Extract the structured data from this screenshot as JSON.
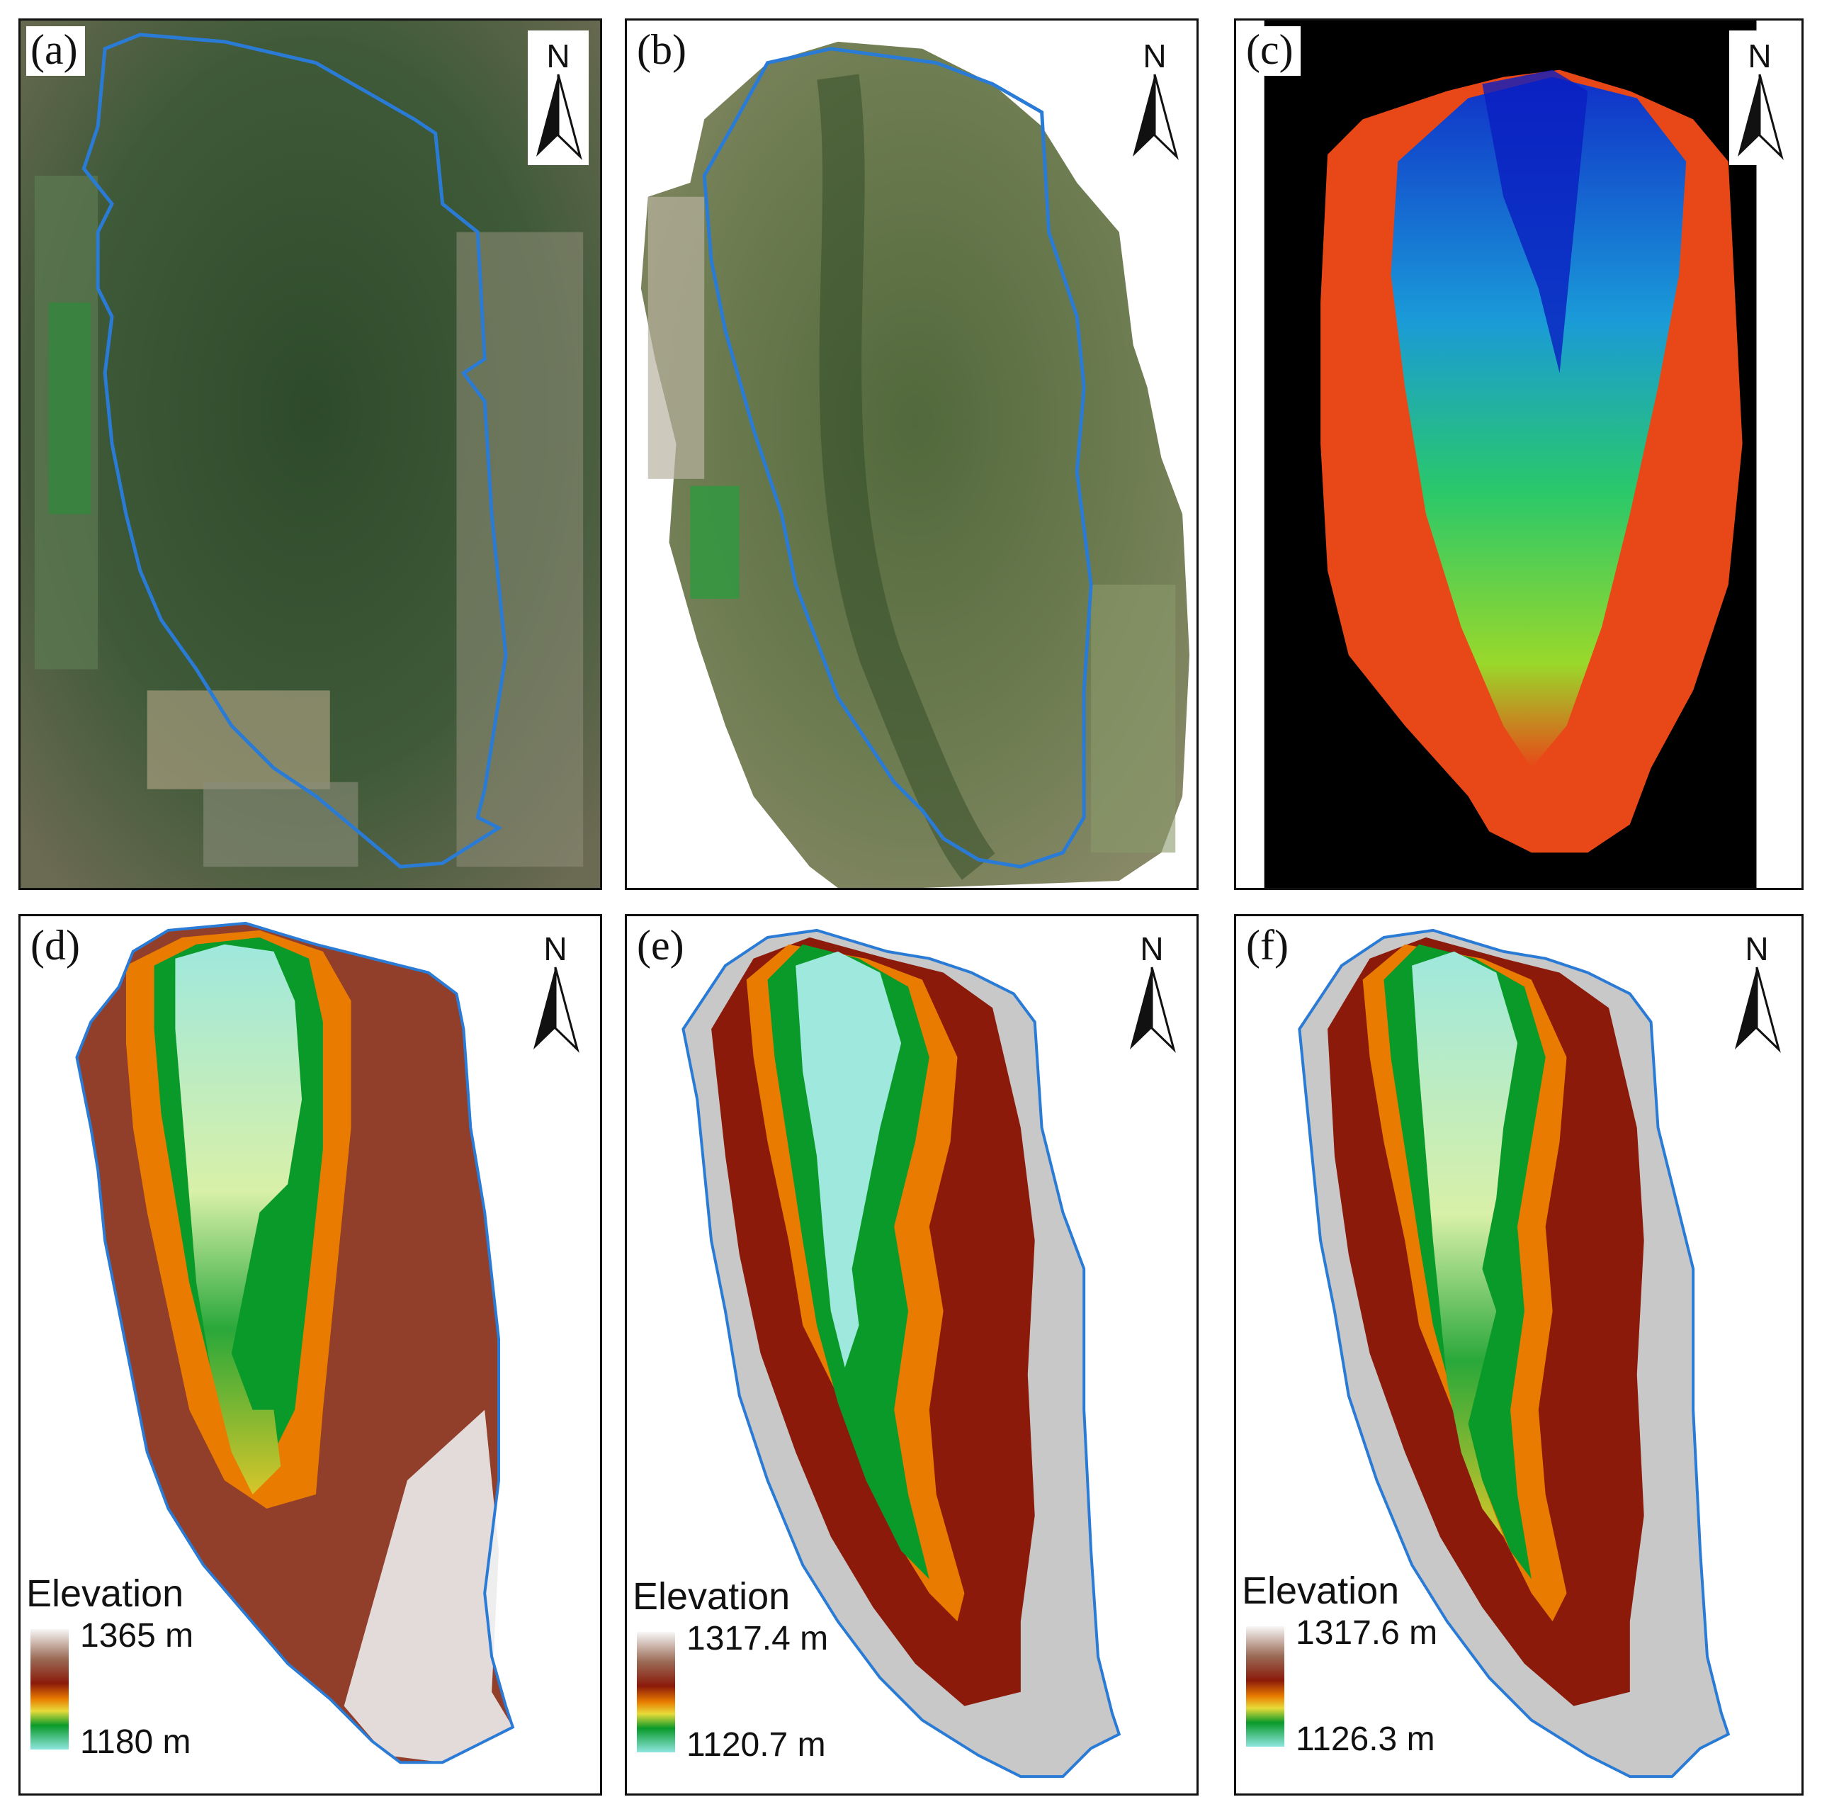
{
  "panels": {
    "a": {
      "label": "(a)",
      "north": "N"
    },
    "b": {
      "label": "(b)",
      "north": "N"
    },
    "c": {
      "label": "(c)",
      "north": "N"
    },
    "d": {
      "label": "(d)",
      "north": "N",
      "legend": {
        "title": "Elevation",
        "max": "1365 m",
        "min": "1180 m"
      }
    },
    "e": {
      "label": "(e)",
      "north": "N",
      "legend": {
        "title": "Elevation",
        "max": "1317.4 m",
        "min": "1120.7 m"
      }
    },
    "f": {
      "label": "(f)",
      "north": "N",
      "legend": {
        "title": "Elevation",
        "max": "1317.6 m",
        "min": "1126.3 m"
      }
    }
  },
  "colors": {
    "boundary": "#2a7bd6",
    "ramp_high": "#ffffff",
    "ramp_mid": "#8b1a0a",
    "ramp_orange": "#e87b00",
    "ramp_yellow": "#e8dc3a",
    "ramp_green": "#0a9a2a",
    "ramp_low": "#8ee6e0"
  }
}
